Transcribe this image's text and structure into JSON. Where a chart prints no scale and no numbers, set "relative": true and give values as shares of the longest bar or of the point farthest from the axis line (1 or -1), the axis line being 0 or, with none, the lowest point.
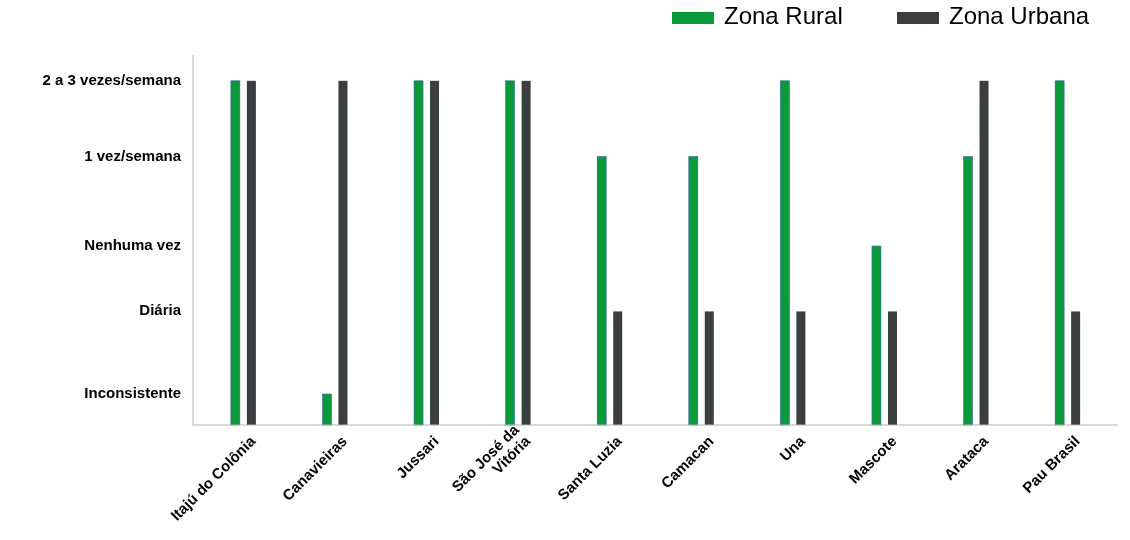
{
  "chart_data": {
    "type": "bar",
    "relative": true,
    "categories": [
      "Itajú do Colônia",
      "Canavieiras",
      "Jussari",
      "São José da Vitória",
      "Santa Luzia",
      "Camacan",
      "Una",
      "Mascote",
      "Arataca",
      "Pau Brasil"
    ],
    "series": [
      {
        "name": "Zona Rural",
        "color": "#0a9a3a",
        "values": [
          1,
          0.09,
          1,
          1,
          0.78,
          0.78,
          1,
          0.52,
          0.78,
          1
        ]
      },
      {
        "name": "Zona Urbana",
        "color": "#3b3e3e",
        "values": [
          1,
          1,
          1,
          1,
          0.33,
          0.33,
          0.33,
          0.33,
          1,
          0.33
        ]
      }
    ],
    "annotations": [
      "Inconsistente",
      "Diária",
      "Nenhuma vez",
      "1 vez/semana",
      "2 a 3 vezes/semana"
    ],
    "legend": "top right"
  }
}
